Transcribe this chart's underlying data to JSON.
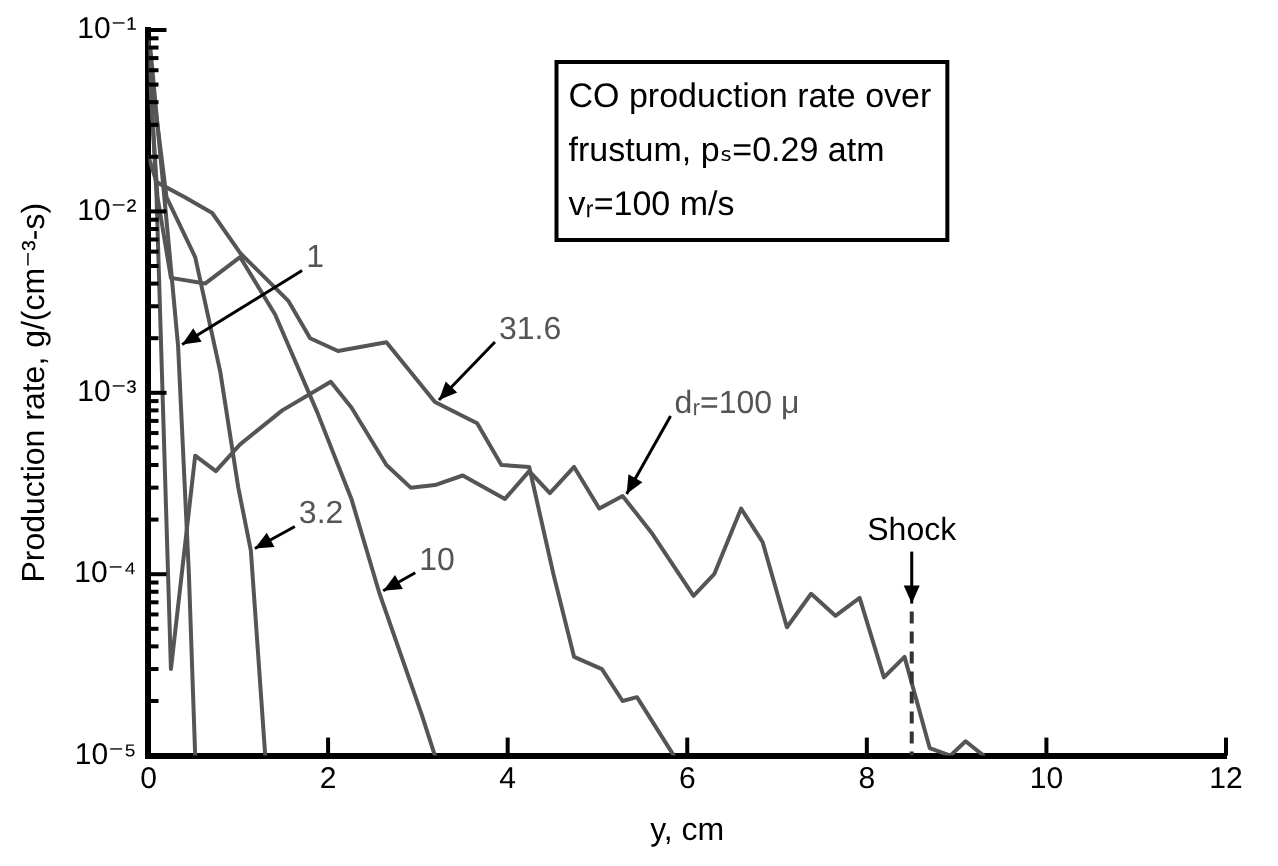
{
  "chart_data": {
    "type": "line",
    "xlabel": "y, cm",
    "ylabel": "Production rate, g/(cm⁻³-s)",
    "xlim": [
      0,
      12
    ],
    "xticks": [
      0,
      2,
      4,
      6,
      8,
      10,
      12
    ],
    "log": "y",
    "ylim": [
      1e-05,
      0.1
    ],
    "yticks": [
      {
        "value": 1e-05,
        "label": "10⁻⁵"
      },
      {
        "value": 2e-05,
        "label": null
      },
      {
        "value": 3e-05,
        "label": null
      },
      {
        "value": 4e-05,
        "label": null
      },
      {
        "value": 5e-05,
        "label": null
      },
      {
        "value": 6e-05,
        "label": null
      },
      {
        "value": 7e-05,
        "label": null
      },
      {
        "value": 8e-05,
        "label": null
      },
      {
        "value": 9e-05,
        "label": null
      },
      {
        "value": 0.0001,
        "label": "10⁻⁴"
      },
      {
        "value": 0.0002,
        "label": null
      },
      {
        "value": 0.0003,
        "label": null
      },
      {
        "value": 0.0004,
        "label": null
      },
      {
        "value": 0.0005,
        "label": null
      },
      {
        "value": 0.0006,
        "label": null
      },
      {
        "value": 0.0007,
        "label": null
      },
      {
        "value": 0.0008,
        "label": null
      },
      {
        "value": 0.0009,
        "label": null
      },
      {
        "value": 0.001,
        "label": "10⁻³"
      },
      {
        "value": 0.002,
        "label": null
      },
      {
        "value": 0.003,
        "label": null
      },
      {
        "value": 0.004,
        "label": null
      },
      {
        "value": 0.005,
        "label": null
      },
      {
        "value": 0.006,
        "label": null
      },
      {
        "value": 0.007,
        "label": null
      },
      {
        "value": 0.008,
        "label": null
      },
      {
        "value": 0.009,
        "label": null
      },
      {
        "value": 0.01,
        "label": "10⁻²"
      },
      {
        "value": 0.02,
        "label": null
      },
      {
        "value": 0.03,
        "label": null
      },
      {
        "value": 0.04,
        "label": null
      },
      {
        "value": 0.05,
        "label": null
      },
      {
        "value": 0.06,
        "label": null
      },
      {
        "value": 0.07,
        "label": null
      },
      {
        "value": 0.08,
        "label": null
      },
      {
        "value": 0.09,
        "label": null
      },
      {
        "value": 0.1,
        "label": "10⁻¹"
      }
    ],
    "grid": false,
    "legend": false,
    "marker": "none",
    "line_style": "solid",
    "series": [
      {
        "name": "1",
        "color": "#555555",
        "x": [
          0.02,
          0.1,
          0.2,
          0.33,
          0.45,
          0.52
        ],
        "values": [
          0.08,
          0.03,
          0.009,
          0.0018,
          0.0001,
          1e-05
        ]
      },
      {
        "name": "3.2",
        "color": "#555555",
        "x": [
          0.02,
          0.1,
          0.2,
          0.52,
          0.8,
          1.0,
          1.14,
          1.3
        ],
        "values": [
          0.06,
          0.03,
          0.012,
          0.0056,
          0.0013,
          0.0003,
          0.000135,
          1e-05
        ]
      },
      {
        "name": "10",
        "color": "#555555",
        "x": [
          0.02,
          0.1,
          0.25,
          0.63,
          1.02,
          1.41,
          1.88,
          2.26,
          2.57,
          3.04,
          3.19
        ],
        "values": [
          0.05,
          0.012,
          0.0043,
          0.004,
          0.0056,
          0.0027,
          0.00078,
          0.00026,
          7.9e-05,
          1.7e-05,
          1e-05
        ]
      },
      {
        "name": "31.6",
        "color": "#555555",
        "x": [
          0,
          0.09,
          0.4,
          0.71,
          1.02,
          1.56,
          1.8,
          2.11,
          2.65,
          3.19,
          3.66,
          3.93,
          4.24,
          4.51,
          4.74,
          5.05,
          5.28,
          5.44,
          5.85
        ],
        "values": [
          0.02,
          0.0145,
          0.012,
          0.0098,
          0.0059,
          0.0032,
          0.002,
          0.0017,
          0.0019,
          0.00089,
          0.00068,
          0.0004,
          0.00039,
          0.0001,
          3.5e-05,
          3e-05,
          2e-05,
          2.1e-05,
          1e-05
        ]
      },
      {
        "name": "dᵣ=100 μ",
        "color": "#555555",
        "x": [
          0,
          0.09,
          0.25,
          0.52,
          0.75,
          1.02,
          1.49,
          2.03,
          2.26,
          2.65,
          2.92,
          3.19,
          3.5,
          3.97,
          4.24,
          4.47,
          4.74,
          5.02,
          5.28,
          5.6,
          6.07,
          6.3,
          6.6,
          6.84,
          7.11,
          7.38,
          7.65,
          7.92,
          8.19,
          8.42,
          8.7,
          8.93,
          9.1,
          9.3
        ],
        "values": [
          0.089,
          0.012,
          3e-05,
          0.00045,
          0.00037,
          0.00052,
          0.0008,
          0.00115,
          0.00083,
          0.0004,
          0.0003,
          0.00031,
          0.00035,
          0.00026,
          0.00037,
          0.00028,
          0.00039,
          0.00023,
          0.00027,
          0.00017,
          7.6e-05,
          0.0001,
          0.00023,
          0.00015,
          5.1e-05,
          7.8e-05,
          5.9e-05,
          7.4e-05,
          2.7e-05,
          3.5e-05,
          1.1e-05,
          1e-05,
          1.2e-05,
          1e-05
        ]
      }
    ],
    "ref_lines": [
      {
        "axis": "x",
        "value": 8.5,
        "label": "Shock",
        "line_style": "dashed",
        "color": "#333333"
      }
    ],
    "annotations": [
      "CO production rate over\nfrustum, pₛ=0.29 atm\nvᵣ=100 m/s"
    ]
  }
}
